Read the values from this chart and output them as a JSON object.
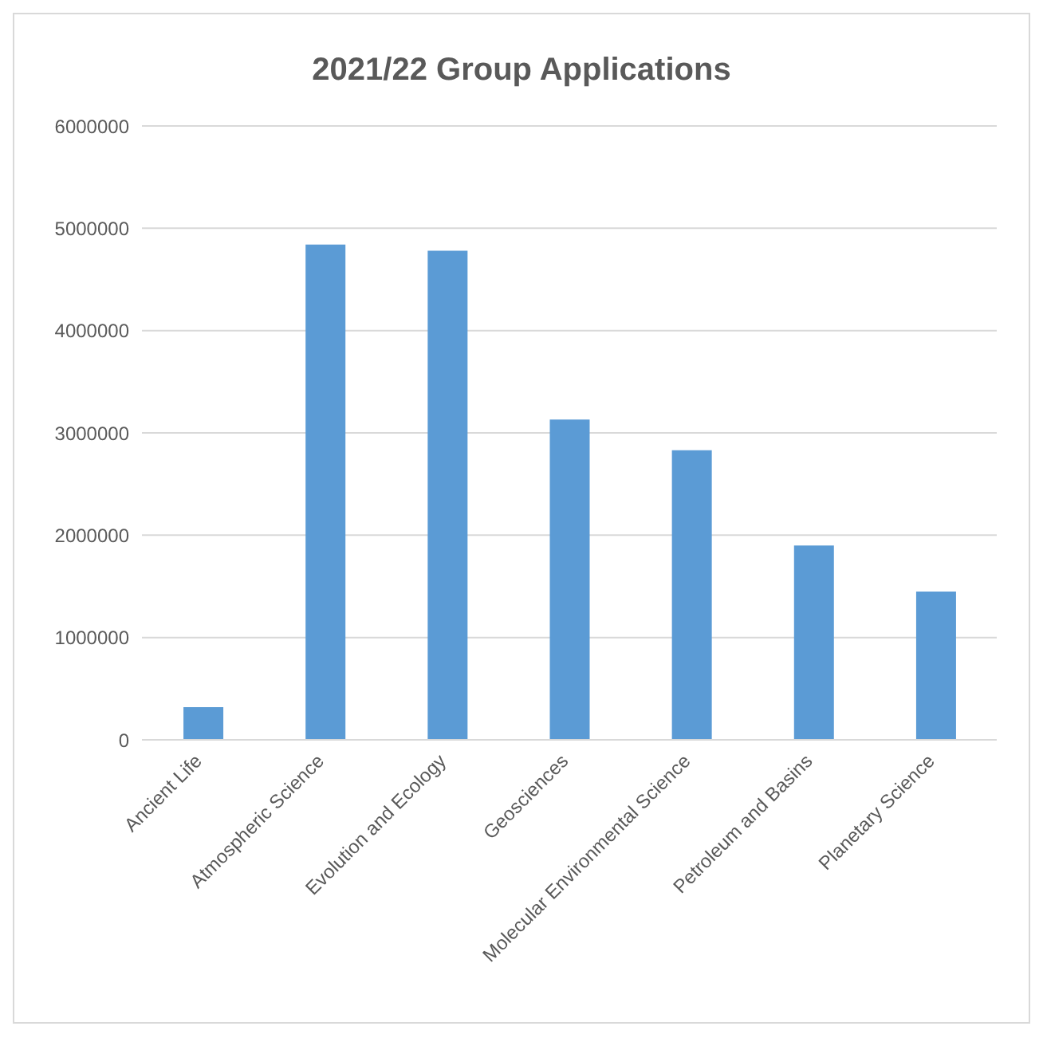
{
  "chart_data": {
    "type": "bar",
    "title": "2021/22 Group Applications",
    "categories": [
      "Ancient Life",
      "Atmospheric Science",
      "Evolution and Ecology",
      "Geosciences",
      "Molecular Environmental Science",
      "Petroleum and Basins",
      "Planetary Science"
    ],
    "values": [
      320000,
      4840000,
      4780000,
      3130000,
      2830000,
      1900000,
      1450000
    ],
    "color": "#5b9bd5",
    "ylim": [
      0,
      6000000
    ],
    "yticks": [
      0,
      1000000,
      2000000,
      3000000,
      4000000,
      5000000,
      6000000
    ],
    "grid": "y",
    "legend": false
  }
}
